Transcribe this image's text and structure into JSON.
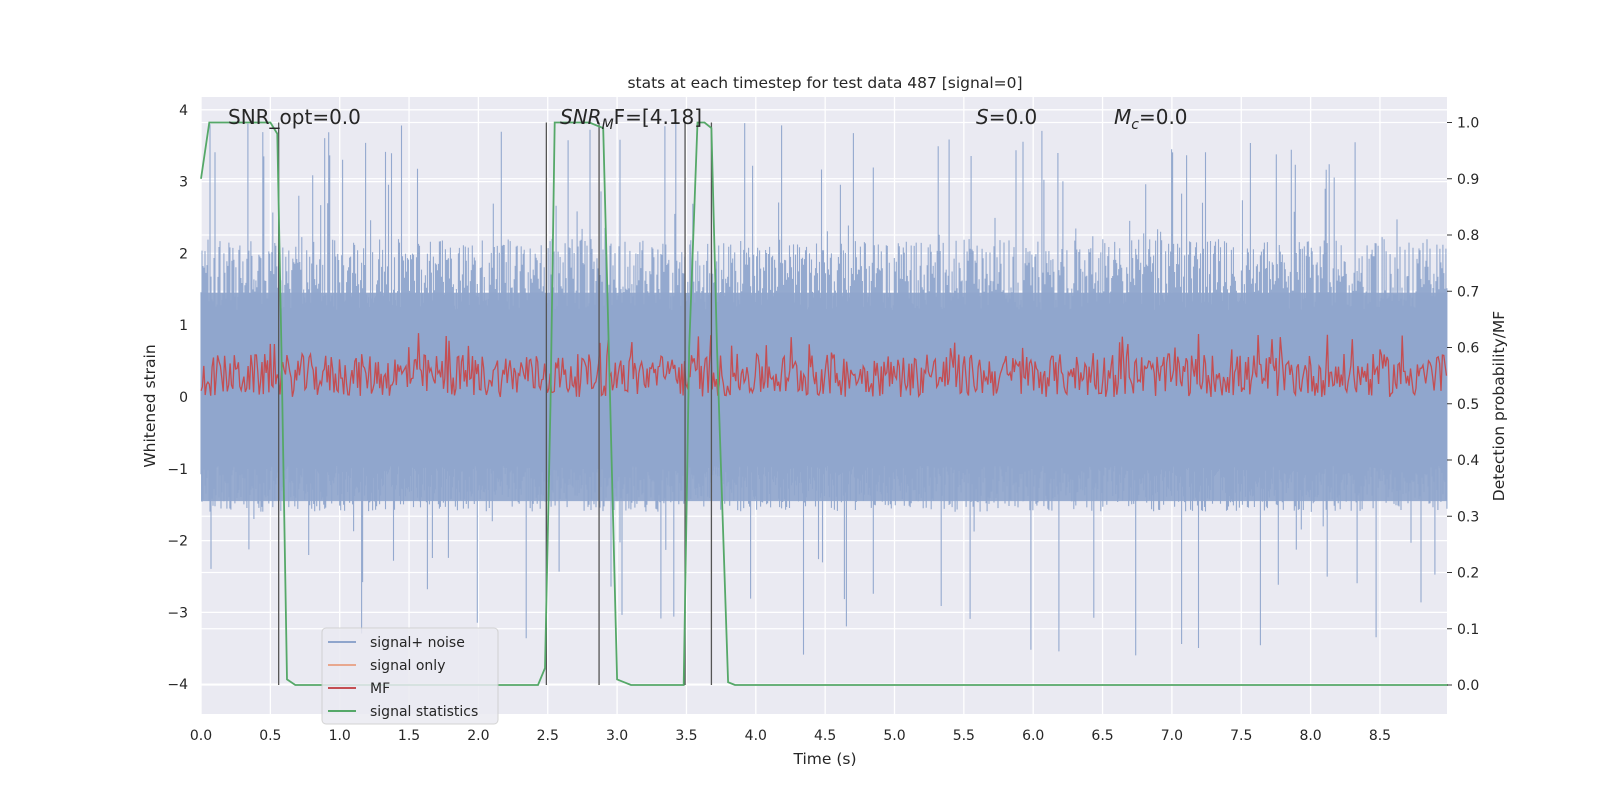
{
  "chart_data": {
    "type": "line",
    "title": "stats at each timestep for test data 487 [signal=0]",
    "xlabel": "Time (s)",
    "ylabel_left": "Whitened strain",
    "ylabel_right": "Detection probability/MF",
    "xlim": [
      0.0,
      9.0
    ],
    "ylim_left": [
      -4.4,
      4.2
    ],
    "ylim_right": [
      -0.05,
      1.04
    ],
    "xticks": [
      "0.0",
      "0.5",
      "1.0",
      "1.5",
      "2.0",
      "2.5",
      "3.0",
      "3.5",
      "4.0",
      "4.5",
      "5.0",
      "5.5",
      "6.0",
      "6.5",
      "7.0",
      "7.5",
      "8.0",
      "8.5"
    ],
    "yticks_left": [
      "4",
      "3",
      "2",
      "1",
      "0",
      "−1",
      "−2",
      "−3",
      "−4"
    ],
    "yticks_right": [
      "1.0",
      "0.9",
      "0.8",
      "0.7",
      "0.6",
      "0.5",
      "0.4",
      "0.3",
      "0.2",
      "0.1",
      "0.0"
    ],
    "grid": true,
    "legend_position": "lower-left",
    "annotations": {
      "snr_opt": "SNR_opt=0.0",
      "snr_mf_sym": "SNR",
      "snr_mf_sub": "M",
      "snr_mf_tail": "F=[4.18]",
      "s_sym": "S",
      "s_tail": "=0.0",
      "mc_sym": "M",
      "mc_sub": "c",
      "mc_tail": "=0.0"
    },
    "series": [
      {
        "name": "signal+ noise",
        "color": "#8fa5cc",
        "axis": "left",
        "envelope_approx": {
          "band_low": -1.6,
          "band_high": 2.2,
          "peak_max": 3.85,
          "trough_min": -3.65
        }
      },
      {
        "name": "signal only",
        "color": "#e8a88f",
        "axis": "left",
        "values": []
      },
      {
        "name": "MF",
        "color": "#c44e52",
        "axis": "left",
        "envelope_approx": {
          "center": 0.3,
          "band_low": -0.05,
          "band_high": 0.85
        }
      },
      {
        "name": "signal statistics",
        "color": "#55a868",
        "axis": "right",
        "x": [
          0.0,
          0.06,
          0.1,
          0.15,
          0.2,
          0.25,
          0.3,
          0.35,
          0.4,
          0.45,
          0.5,
          0.55,
          0.58,
          0.62,
          0.68,
          0.75,
          2.2,
          2.3,
          2.43,
          2.48,
          2.52,
          2.55,
          2.6,
          2.7,
          2.8,
          2.9,
          2.95,
          3.0,
          3.05,
          3.1,
          3.2,
          3.3,
          3.42,
          3.48,
          3.52,
          3.58,
          3.63,
          3.68,
          3.72,
          3.8,
          3.85,
          4.0,
          8.99
        ],
        "y": [
          0.9,
          1.0,
          1.0,
          1.0,
          1.0,
          1.0,
          1.0,
          1.0,
          1.0,
          1.0,
          1.0,
          0.98,
          0.6,
          0.01,
          0.0,
          0.0,
          0.0,
          0.0,
          0.0,
          0.03,
          0.5,
          1.0,
          1.0,
          1.0,
          1.0,
          0.99,
          0.5,
          0.01,
          0.005,
          0.0,
          0.0,
          0.0,
          0.0,
          0.0,
          0.6,
          1.0,
          1.0,
          0.99,
          0.6,
          0.005,
          0.0,
          0.0,
          0.0
        ]
      }
    ],
    "vertical_markers_s": [
      0.56,
      2.49,
      2.87,
      3.49,
      3.68
    ]
  }
}
